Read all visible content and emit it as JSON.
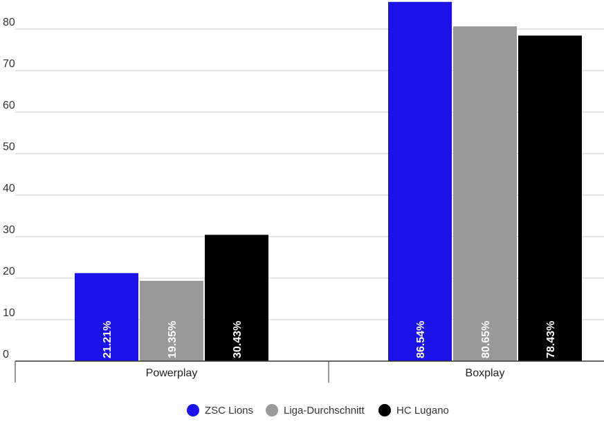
{
  "chart_data": {
    "type": "bar",
    "categories": [
      "Powerplay",
      "Boxplay"
    ],
    "series": [
      {
        "name": "ZSC Lions",
        "color": "#1a12e8",
        "values": [
          21.21,
          86.54
        ],
        "labels": [
          "21.21%",
          "86.54%"
        ]
      },
      {
        "name": "Liga-Durchschnitt",
        "color": "#999999",
        "values": [
          19.35,
          80.65
        ],
        "labels": [
          "19.35%",
          "80.65%"
        ]
      },
      {
        "name": "HC Lugano",
        "color": "#000000",
        "values": [
          30.43,
          78.43
        ],
        "labels": [
          "30.43%",
          "78.43%"
        ]
      }
    ],
    "y_ticks": [
      0,
      10,
      20,
      30,
      40,
      50,
      60,
      70,
      80
    ],
    "ylim": [
      0,
      87
    ],
    "grid": true,
    "legend_position": "bottom"
  }
}
